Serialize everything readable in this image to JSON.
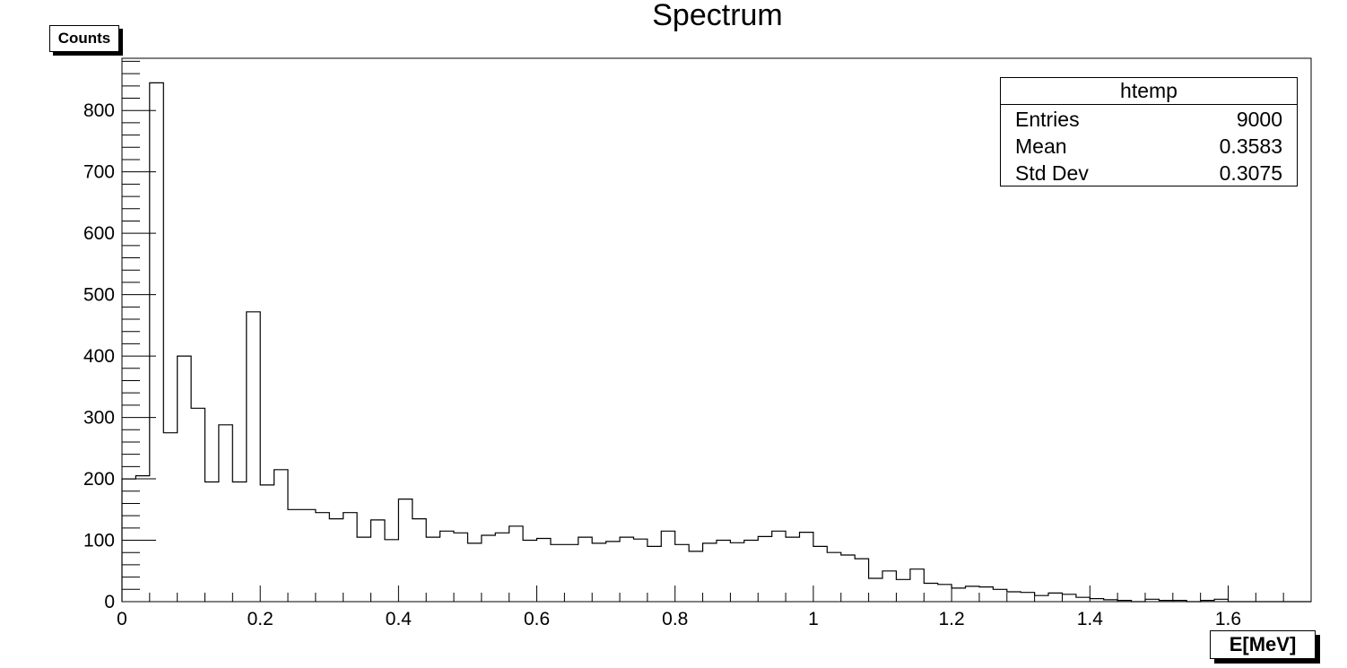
{
  "chart_data": {
    "type": "histogram",
    "title": "Spectrum",
    "xlabel": "E[MeV]",
    "ylabel": "Counts",
    "xlim": [
      0,
      1.72
    ],
    "ylim": [
      0,
      885
    ],
    "bin_width": 0.02,
    "x_ticks": [
      "0",
      "0.2",
      "0.4",
      "0.6",
      "0.8",
      "1",
      "1.2",
      "1.4",
      "1.6"
    ],
    "y_ticks": [
      "0",
      "100",
      "200",
      "300",
      "400",
      "500",
      "600",
      "700",
      "800"
    ],
    "bin_start": 0,
    "values": [
      200,
      205,
      845,
      275,
      400,
      315,
      195,
      288,
      195,
      472,
      190,
      215,
      150,
      150,
      145,
      135,
      145,
      105,
      133,
      101,
      167,
      135,
      105,
      115,
      112,
      95,
      108,
      112,
      123,
      100,
      103,
      93,
      93,
      105,
      95,
      98,
      105,
      102,
      90,
      115,
      93,
      82,
      95,
      100,
      96,
      100,
      106,
      115,
      105,
      113,
      90,
      80,
      76,
      70,
      38,
      50,
      36,
      53,
      30,
      28,
      22,
      25,
      24,
      20,
      16,
      15,
      10,
      14,
      12,
      7,
      5,
      3,
      2,
      0,
      4,
      2,
      2,
      0,
      2,
      4,
      0,
      0,
      0,
      0,
      0,
      0,
      0,
      0,
      0,
      0,
      1,
      0,
      0,
      1,
      0,
      0,
      0,
      0,
      0,
      0,
      0,
      0,
      0,
      0,
      0,
      0,
      0,
      0,
      0,
      0,
      0,
      0,
      0,
      0,
      0,
      0,
      0,
      0,
      0,
      3,
      0,
      0,
      0,
      0,
      0,
      0,
      0,
      0,
      0,
      0,
      0,
      0,
      0,
      0,
      0,
      0
    ],
    "stats": {
      "name": "htemp",
      "entries_label": "Entries",
      "entries": "9000",
      "mean_label": "Mean",
      "mean": "0.3583",
      "std_label": "Std Dev",
      "std": "0.3075"
    }
  }
}
